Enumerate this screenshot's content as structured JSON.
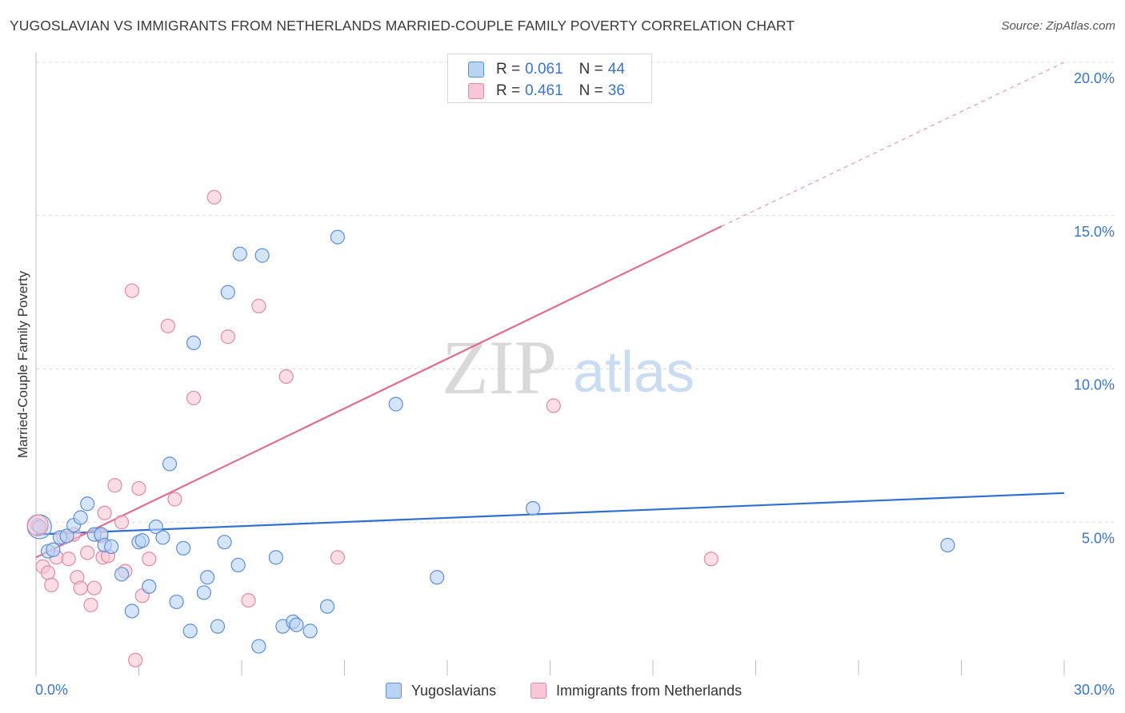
{
  "header": {
    "title": "YUGOSLAVIAN VS IMMIGRANTS FROM NETHERLANDS MARRIED-COUPLE FAMILY POVERTY CORRELATION CHART",
    "source": "Source: ZipAtlas.com"
  },
  "legend_top": {
    "rows": [
      {
        "r_label": "R = ",
        "r_value": "0.061",
        "n_label": "N = ",
        "n_value": "44"
      },
      {
        "r_label": "R = ",
        "r_value": "0.461",
        "n_label": "N = ",
        "n_value": "36"
      }
    ]
  },
  "legend_bottom": {
    "items": [
      {
        "label": "Yugoslavians"
      },
      {
        "label": "Immigrants from Netherlands"
      }
    ]
  },
  "watermark": {
    "zip": "ZIP",
    "atlas": "atlas"
  },
  "colors": {
    "blue_fill": "#b9d3f5",
    "blue_stroke": "#5d8fd6",
    "blue_line": "#2f6fd0",
    "pink_fill": "#f8c6d6",
    "pink_stroke": "#e28aa6",
    "pink_line": "#e06b93",
    "grid": "#dcdcdc",
    "axis_text": "#3a74c8"
  },
  "chart_data": {
    "type": "scatter",
    "title": "YUGOSLAVIAN VS IMMIGRANTS FROM NETHERLANDS MARRIED-COUPLE FAMILY POVERTY CORRELATION CHART",
    "xlabel": "",
    "ylabel": "Married-Couple Family Poverty",
    "xlim": [
      0,
      30
    ],
    "ylim": [
      0,
      20
    ],
    "x_tick_labels": [
      "0.0%",
      "30.0%"
    ],
    "y_ticks": [
      5,
      10,
      15,
      20
    ],
    "y_tick_labels": [
      "5.0%",
      "10.0%",
      "15.0%",
      "20.0%"
    ],
    "series": [
      {
        "name": "Yugoslavians",
        "r": 0.061,
        "n": 44,
        "trend": {
          "x0": 0,
          "y0": 4.6,
          "x1": 30,
          "y1": 5.95,
          "dashed_to": null
        },
        "points": [
          [
            0.1,
            4.85
          ],
          [
            0.35,
            4.05
          ],
          [
            0.5,
            4.1
          ],
          [
            0.7,
            4.5
          ],
          [
            0.9,
            4.55
          ],
          [
            1.1,
            4.9
          ],
          [
            1.3,
            5.15
          ],
          [
            1.5,
            5.6
          ],
          [
            1.7,
            4.6
          ],
          [
            1.9,
            4.6
          ],
          [
            2.0,
            4.25
          ],
          [
            2.2,
            4.2
          ],
          [
            2.5,
            3.3
          ],
          [
            2.8,
            2.1
          ],
          [
            3.0,
            4.35
          ],
          [
            3.1,
            4.4
          ],
          [
            3.3,
            2.9
          ],
          [
            3.5,
            4.85
          ],
          [
            3.7,
            4.5
          ],
          [
            3.9,
            6.9
          ],
          [
            4.1,
            2.4
          ],
          [
            4.3,
            4.15
          ],
          [
            4.5,
            1.45
          ],
          [
            4.6,
            10.85
          ],
          [
            4.9,
            2.7
          ],
          [
            5.0,
            3.2
          ],
          [
            5.3,
            1.6
          ],
          [
            5.5,
            4.35
          ],
          [
            5.6,
            12.5
          ],
          [
            5.9,
            3.6
          ],
          [
            5.95,
            13.75
          ],
          [
            6.5,
            0.95
          ],
          [
            6.6,
            13.7
          ],
          [
            7.0,
            3.85
          ],
          [
            7.2,
            1.6
          ],
          [
            7.5,
            1.75
          ],
          [
            7.6,
            1.65
          ],
          [
            8.0,
            1.45
          ],
          [
            8.5,
            2.25
          ],
          [
            8.8,
            14.3
          ],
          [
            10.5,
            8.85
          ],
          [
            11.7,
            3.2
          ],
          [
            14.5,
            5.45
          ],
          [
            26.6,
            4.25
          ]
        ]
      },
      {
        "name": "Immigrants from Netherlands",
        "r": 0.461,
        "n": 36,
        "trend": {
          "x0": 0,
          "y0": 3.85,
          "x1": 20.0,
          "y1": 14.65,
          "dashed_to": {
            "x": 30,
            "y": 20.0
          }
        },
        "points": [
          [
            0.05,
            4.9
          ],
          [
            0.2,
            3.55
          ],
          [
            0.35,
            3.35
          ],
          [
            0.45,
            2.95
          ],
          [
            0.6,
            3.85
          ],
          [
            0.8,
            4.5
          ],
          [
            0.95,
            3.8
          ],
          [
            1.1,
            4.6
          ],
          [
            1.2,
            3.2
          ],
          [
            1.3,
            2.85
          ],
          [
            1.5,
            4.0
          ],
          [
            1.6,
            2.3
          ],
          [
            1.7,
            2.85
          ],
          [
            1.9,
            4.55
          ],
          [
            1.95,
            3.85
          ],
          [
            2.0,
            5.3
          ],
          [
            2.1,
            3.9
          ],
          [
            2.3,
            6.2
          ],
          [
            2.5,
            5.0
          ],
          [
            2.6,
            3.4
          ],
          [
            2.8,
            12.55
          ],
          [
            2.9,
            0.5
          ],
          [
            3.0,
            6.1
          ],
          [
            3.1,
            2.6
          ],
          [
            3.3,
            3.8
          ],
          [
            3.85,
            11.4
          ],
          [
            4.05,
            5.75
          ],
          [
            4.6,
            9.05
          ],
          [
            5.2,
            15.6
          ],
          [
            5.6,
            11.05
          ],
          [
            6.2,
            2.45
          ],
          [
            6.5,
            12.05
          ],
          [
            7.3,
            9.75
          ],
          [
            8.8,
            3.85
          ],
          [
            15.1,
            8.8
          ],
          [
            19.7,
            3.8
          ]
        ]
      }
    ]
  }
}
